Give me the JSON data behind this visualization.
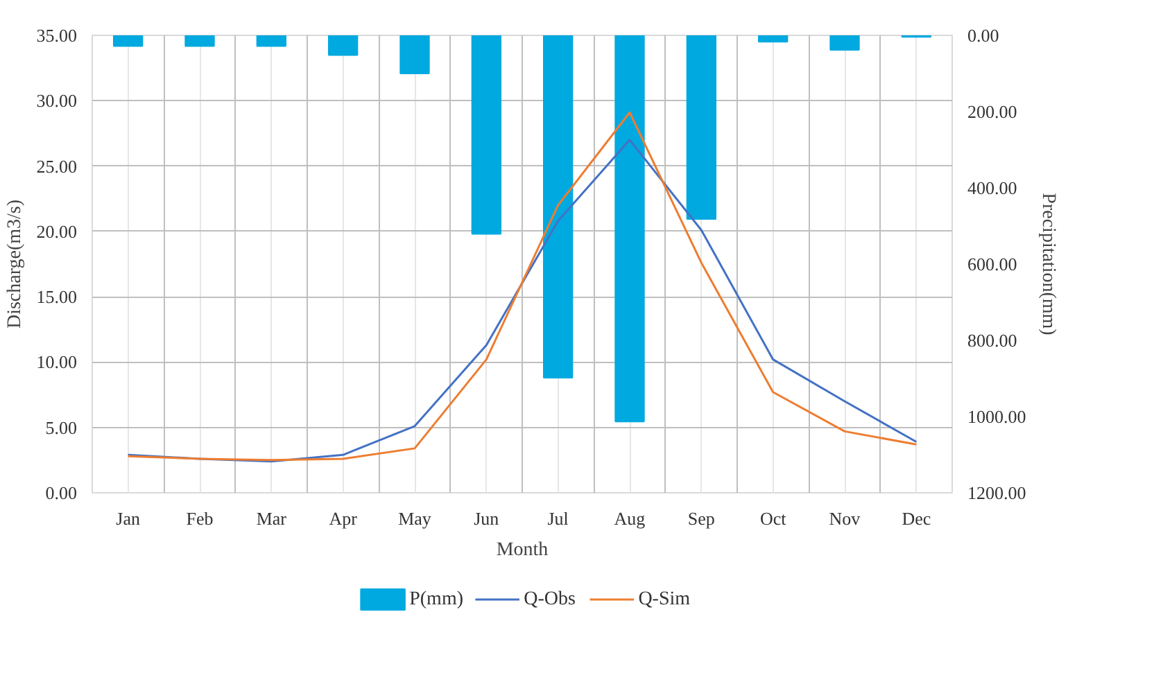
{
  "chart_data": {
    "type": "line",
    "xlabel": "Month",
    "ylabel": "Discharge(m3/s)",
    "y2label": "Precipitation(mm)",
    "categories": [
      "Jan",
      "Feb",
      "Mar",
      "Apr",
      "May",
      "Jun",
      "Jul",
      "Aug",
      "Sep",
      "Oct",
      "Nov",
      "Dec"
    ],
    "series": [
      {
        "name": "P(mm)",
        "type": "bar",
        "axis": "y2",
        "color": "#00a9e0",
        "values": [
          28,
          28,
          28,
          52,
          100,
          521,
          898,
          1013,
          482,
          17,
          38,
          4
        ]
      },
      {
        "name": "Q-Obs",
        "color": "#4472c4",
        "values": [
          2.9,
          2.6,
          2.4,
          2.9,
          5.1,
          11.3,
          20.8,
          27.0,
          20.1,
          10.2,
          7.0,
          3.9
        ]
      },
      {
        "name": "Q-Sim",
        "color": "#ed7d31",
        "values": [
          2.8,
          2.6,
          2.5,
          2.6,
          3.4,
          10.2,
          22.0,
          29.1,
          17.6,
          7.7,
          4.7,
          3.7
        ]
      }
    ],
    "ylim": [
      0,
      35
    ],
    "yticks": [
      {
        "value": 0,
        "label": "0.00"
      },
      {
        "value": 5,
        "label": "5.00"
      },
      {
        "value": 10,
        "label": "10.00"
      },
      {
        "value": 15,
        "label": "15.00"
      },
      {
        "value": 20,
        "label": "20.00"
      },
      {
        "value": 25,
        "label": "25.00"
      },
      {
        "value": 30,
        "label": "30.00"
      },
      {
        "value": 35,
        "label": "35.00"
      }
    ],
    "y2lim": [
      1200,
      0
    ],
    "y2ticks": [
      {
        "value": 0,
        "label": "0.00"
      },
      {
        "value": 200,
        "label": "200.00"
      },
      {
        "value": 400,
        "label": "400.00"
      },
      {
        "value": 600,
        "label": "600.00"
      },
      {
        "value": 800,
        "label": "800.00"
      },
      {
        "value": 1000,
        "label": "1000.00"
      },
      {
        "value": 1200,
        "label": "1200.00"
      }
    ],
    "grid": true,
    "legend": "bottom",
    "marker": "none",
    "line_style": "solid"
  }
}
